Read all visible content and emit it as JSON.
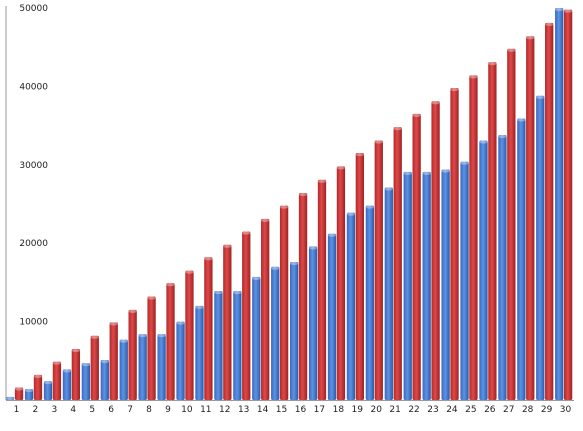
{
  "chart_data": {
    "type": "bar",
    "title": "",
    "xlabel": "",
    "ylabel": "",
    "categories": [
      "1",
      "2",
      "3",
      "4",
      "5",
      "6",
      "7",
      "8",
      "9",
      "10",
      "11",
      "12",
      "13",
      "14",
      "15",
      "16",
      "17",
      "18",
      "19",
      "20",
      "21",
      "22",
      "23",
      "24",
      "25",
      "26",
      "27",
      "28",
      "29",
      "30"
    ],
    "ylim": [
      0,
      50000
    ],
    "y_ticks": [
      10000,
      20000,
      30000,
      40000,
      50000
    ],
    "grid": false,
    "legend": "none",
    "series": [
      {
        "color": "#4a7fd8",
        "values": [
          400,
          1400,
          2400,
          3900,
          4700,
          5100,
          7700,
          8400,
          8400,
          10000,
          12000,
          13900,
          13900,
          15700,
          17000,
          17600,
          19600,
          21200,
          23900,
          24800,
          27100,
          29100,
          29100,
          29400,
          30400,
          33100,
          33800,
          35900,
          38800,
          50000
        ]
      },
      {
        "color": "#d13b3b",
        "values": [
          1600,
          3200,
          4900,
          6500,
          8200,
          9900,
          11500,
          13200,
          14900,
          16500,
          18200,
          19800,
          21500,
          23100,
          24800,
          26400,
          28100,
          29800,
          31500,
          33100,
          34800,
          36500,
          38100,
          39800,
          41400,
          43100,
          44800,
          46400,
          48100,
          49800
        ]
      }
    ]
  }
}
